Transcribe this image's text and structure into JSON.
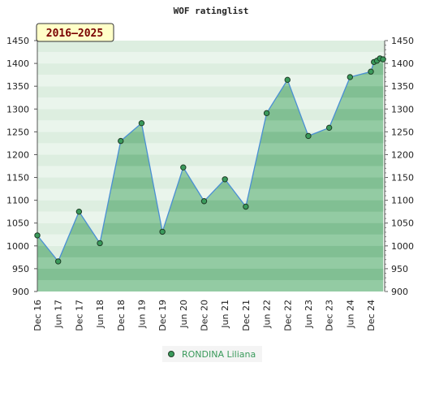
{
  "chart_data": {
    "type": "area",
    "title": "WOF ratinglist",
    "range_badge": "2016–2025",
    "ylim": [
      900,
      1450
    ],
    "y_ticks": [
      900,
      950,
      1000,
      1050,
      1100,
      1150,
      1200,
      1250,
      1300,
      1350,
      1400,
      1450
    ],
    "x_tick_labels": [
      "Dec 16",
      "Jun 17",
      "Dec 17",
      "Jun 18",
      "Dec 18",
      "Jun 19",
      "Dec 19",
      "Jun 20",
      "Dec 20",
      "Jun 21",
      "Dec 21",
      "Jun 22",
      "Dec 22",
      "Jun 23",
      "Dec 23",
      "Jun 24",
      "Dec 24"
    ],
    "series": [
      {
        "name": "RONDINA Liliana",
        "color": "#3a9a5b",
        "line_color": "#4a8fd4",
        "points": [
          {
            "x": "Dec 16",
            "y": 1023
          },
          {
            "x": "Jun 17",
            "y": 966
          },
          {
            "x": "Dec 17",
            "y": 1075
          },
          {
            "x": "Jun 18",
            "y": 1006
          },
          {
            "x": "Dec 18",
            "y": 1230
          },
          {
            "x": "Jun 19",
            "y": 1269
          },
          {
            "x": "Dec 19",
            "y": 1031
          },
          {
            "x": "Jun 20",
            "y": 1172
          },
          {
            "x": "Dec 20",
            "y": 1098
          },
          {
            "x": "Jun 21",
            "y": 1146
          },
          {
            "x": "Dec 21",
            "y": 1086
          },
          {
            "x": "Jun 22",
            "y": 1291
          },
          {
            "x": "Dec 22",
            "y": 1364
          },
          {
            "x": "Jun 23",
            "y": 1241
          },
          {
            "x": "Dec 23",
            "y": 1259
          },
          {
            "x": "Jun 24",
            "y": 1370
          },
          {
            "x": "Dec 24",
            "y": 1382
          },
          {
            "x": "Jan 25",
            "y": 1403
          },
          {
            "x": "Feb 25",
            "y": 1406
          },
          {
            "x": "Mar 25",
            "y": 1411
          },
          {
            "x": "Apr 25",
            "y": 1409
          }
        ]
      }
    ],
    "legend_position": "bottom-center",
    "grid": true
  }
}
